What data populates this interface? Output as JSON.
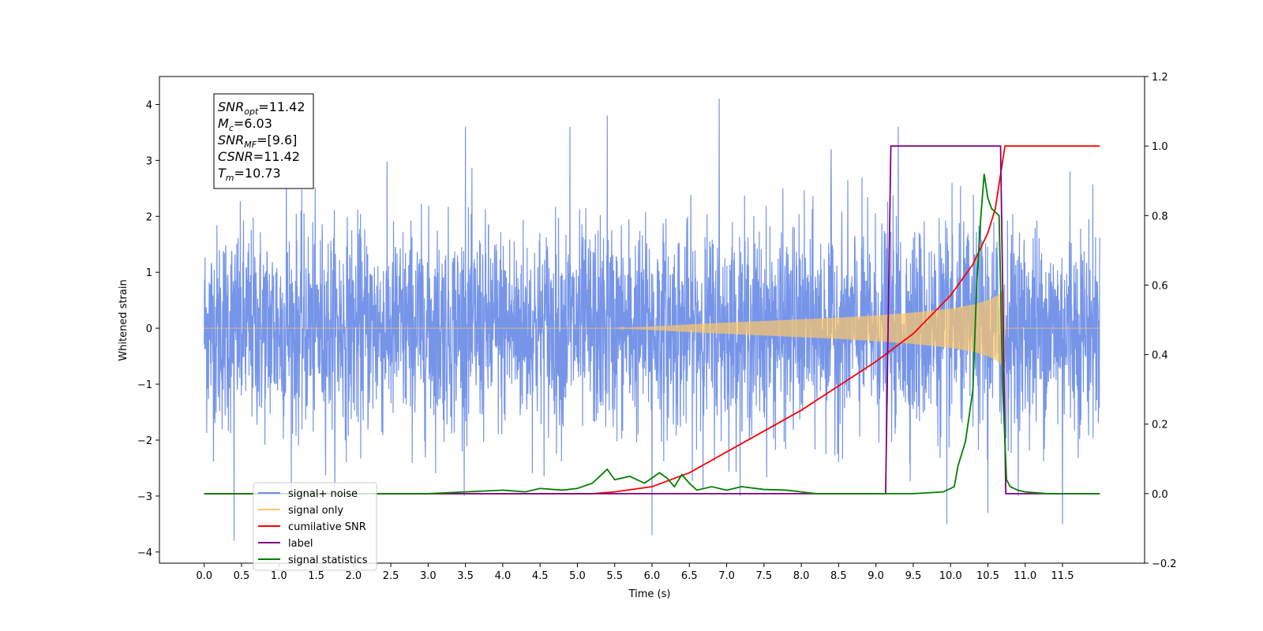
{
  "chart_data": {
    "type": "line",
    "xlabel": "Time (s)",
    "ylabel": "Whitened strain",
    "xlim": [
      -0.6,
      12.6
    ],
    "ylim": [
      -4.2,
      4.5
    ],
    "y2lim": [
      -0.2,
      1.2
    ],
    "x_ticks": [
      "0.0",
      "0.5",
      "1.0",
      "1.5",
      "2.0",
      "2.5",
      "3.0",
      "3.5",
      "4.0",
      "4.5",
      "5.0",
      "5.5",
      "6.0",
      "6.5",
      "7.0",
      "7.5",
      "8.0",
      "8.5",
      "9.0",
      "9.5",
      "10.0",
      "10.5",
      "11.0",
      "11.5"
    ],
    "y_ticks": [
      "4",
      "3",
      "2",
      "1",
      "0",
      "−1",
      "−2",
      "−3",
      "−4"
    ],
    "y2_ticks": [
      "1.2",
      "1.0",
      "0.8",
      "0.6",
      "0.4",
      "0.2",
      "0.0",
      "−0.2"
    ],
    "annotation": {
      "lines": [
        {
          "main": "SNR",
          "sub": "opt",
          "value": "=11.42"
        },
        {
          "main": "M",
          "sub": "c",
          "value": "=6.03"
        },
        {
          "main": "SNR",
          "sub": "MF",
          "value": "=[9.6]"
        },
        {
          "main": "CSNR",
          "sub": "",
          "value": "=11.42"
        },
        {
          "main": "T",
          "sub": "m",
          "value": "=10.73"
        }
      ]
    },
    "legend": {
      "placement": "lower-left",
      "entries": [
        {
          "label": "signal+ noise",
          "color": "#6f8fe8"
        },
        {
          "label": "signal only",
          "color": "#ffc766"
        },
        {
          "label": "cumilative SNR",
          "color": "#ff0000"
        },
        {
          "label": "label",
          "color": "#800080"
        },
        {
          "label": "signal statistics",
          "color": "#008000"
        }
      ]
    },
    "series": [
      {
        "name": "signal+ noise",
        "axis": "left",
        "color": "#6f8fe8",
        "x_start": 0.0,
        "x_end": 12.0,
        "envelope_typical": 2.0,
        "notable_peaks": [
          [
            0.4,
            -3.8
          ],
          [
            1.1,
            2.9
          ],
          [
            3.5,
            3.6
          ],
          [
            4.9,
            3.6
          ],
          [
            5.4,
            3.8
          ],
          [
            6.0,
            -3.7
          ],
          [
            6.9,
            4.1
          ],
          [
            8.4,
            3.2
          ],
          [
            9.3,
            3.6
          ],
          [
            9.95,
            -3.5
          ],
          [
            10.5,
            -3.3
          ],
          [
            11.5,
            -3.5
          ],
          [
            11.6,
            2.8
          ]
        ]
      },
      {
        "name": "signal only",
        "axis": "left",
        "color": "#ffc766",
        "x": [
          0.0,
          5.5,
          6.0,
          6.5,
          7.0,
          7.5,
          8.0,
          8.5,
          9.0,
          9.5,
          10.0,
          10.3,
          10.5,
          10.65,
          10.72,
          10.73,
          12.0
        ],
        "amplitude": [
          0.0,
          0.0,
          0.03,
          0.07,
          0.1,
          0.13,
          0.16,
          0.19,
          0.23,
          0.28,
          0.35,
          0.42,
          0.5,
          0.6,
          0.75,
          0.0,
          0.0
        ]
      },
      {
        "name": "cumilative SNR",
        "axis": "right",
        "color": "#ff0000",
        "x": [
          0.0,
          5.2,
          5.5,
          6.0,
          6.5,
          7.0,
          7.5,
          8.0,
          8.5,
          9.0,
          9.5,
          10.0,
          10.3,
          10.5,
          10.6,
          10.7,
          10.73,
          12.0
        ],
        "values": [
          0.0,
          0.0,
          0.005,
          0.02,
          0.06,
          0.12,
          0.18,
          0.24,
          0.31,
          0.38,
          0.46,
          0.57,
          0.66,
          0.75,
          0.82,
          0.96,
          1.0,
          1.0
        ]
      },
      {
        "name": "label",
        "axis": "right",
        "color": "#800080",
        "x": [
          0.0,
          9.13,
          9.2,
          10.67,
          10.74,
          12.0
        ],
        "values": [
          0.0,
          0.0,
          1.0,
          1.0,
          0.0,
          0.0
        ]
      },
      {
        "name": "signal statistics",
        "axis": "right",
        "color": "#008000",
        "x": [
          0.0,
          3.0,
          3.5,
          4.0,
          4.3,
          4.5,
          4.8,
          5.0,
          5.2,
          5.4,
          5.5,
          5.7,
          5.9,
          6.1,
          6.2,
          6.3,
          6.4,
          6.5,
          6.6,
          6.8,
          7.0,
          7.2,
          7.5,
          7.8,
          8.0,
          8.2,
          8.5,
          9.0,
          9.5,
          9.9,
          10.05,
          10.1,
          10.2,
          10.3,
          10.35,
          10.4,
          10.45,
          10.5,
          10.55,
          10.6,
          10.65,
          10.7,
          10.75,
          10.8,
          10.9,
          11.0,
          11.3,
          11.5,
          12.0
        ],
        "values": [
          0.0,
          0.0,
          0.005,
          0.01,
          0.005,
          0.015,
          0.01,
          0.015,
          0.03,
          0.07,
          0.04,
          0.05,
          0.03,
          0.06,
          0.045,
          0.02,
          0.055,
          0.03,
          0.01,
          0.02,
          0.01,
          0.02,
          0.012,
          0.01,
          0.005,
          0.0,
          0.0,
          0.0,
          0.0,
          0.005,
          0.02,
          0.08,
          0.15,
          0.3,
          0.6,
          0.78,
          0.92,
          0.85,
          0.82,
          0.81,
          0.8,
          0.3,
          0.04,
          0.02,
          0.01,
          0.005,
          0.0,
          0.0,
          0.0
        ]
      }
    ]
  }
}
